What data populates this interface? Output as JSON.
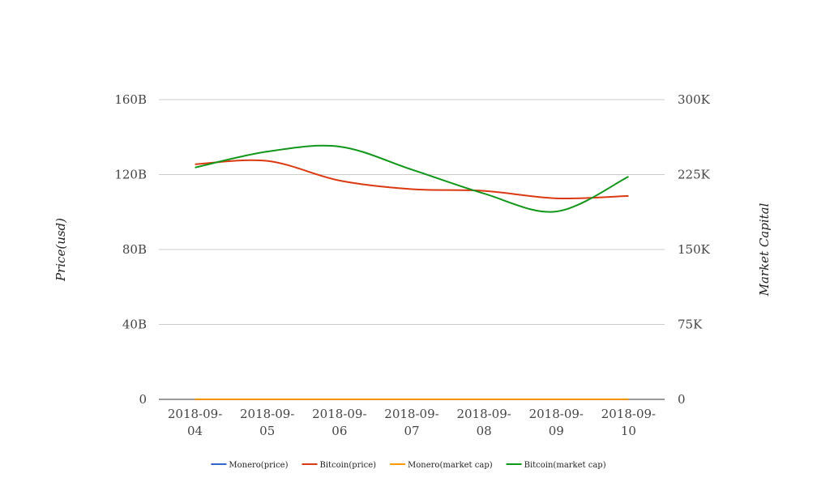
{
  "chart_data": {
    "type": "line",
    "categories": [
      "2018-09-04",
      "2018-09-05",
      "2018-09-06",
      "2018-09-07",
      "2018-09-08",
      "2018-09-09",
      "2018-09-10"
    ],
    "left_axis": {
      "label": "Price(usd)",
      "range": [
        0,
        160000000000
      ],
      "ticks": [
        {
          "value": 0,
          "label": "0"
        },
        {
          "value": 40000000000,
          "label": "40B"
        },
        {
          "value": 80000000000,
          "label": "80B"
        },
        {
          "value": 120000000000,
          "label": "120B"
        },
        {
          "value": 160000000000,
          "label": "160B"
        }
      ]
    },
    "right_axis": {
      "label": "Market Capital",
      "range": [
        0,
        300000
      ],
      "ticks": [
        {
          "value": 0,
          "label": "0"
        },
        {
          "value": 75000,
          "label": "75K"
        },
        {
          "value": 150000,
          "label": "150K"
        },
        {
          "value": 225000,
          "label": "225K"
        },
        {
          "value": 300000,
          "label": "300K"
        }
      ]
    },
    "series": [
      {
        "name": "Monero(price)",
        "axis": "left",
        "color": "#3366cc",
        "values": [
          0,
          0,
          0,
          0,
          0,
          0,
          0
        ]
      },
      {
        "name": "Bitcoin(price)",
        "axis": "left",
        "color": "#dc3912",
        "values": [
          125500000000,
          127300000000,
          116800000000,
          112200000000,
          111300000000,
          107300000000,
          108600000000
        ]
      },
      {
        "name": "Monero(market cap)",
        "axis": "right",
        "color": "#ff9900",
        "values": [
          115,
          120,
          110,
          108,
          108,
          105,
          106
        ]
      },
      {
        "name": "Bitcoin(market cap)",
        "axis": "right",
        "color": "#109618",
        "values": [
          232000,
          248000,
          253000,
          230000,
          206000,
          188000,
          223000
        ]
      }
    ],
    "grid": true,
    "legend_position": "bottom"
  }
}
